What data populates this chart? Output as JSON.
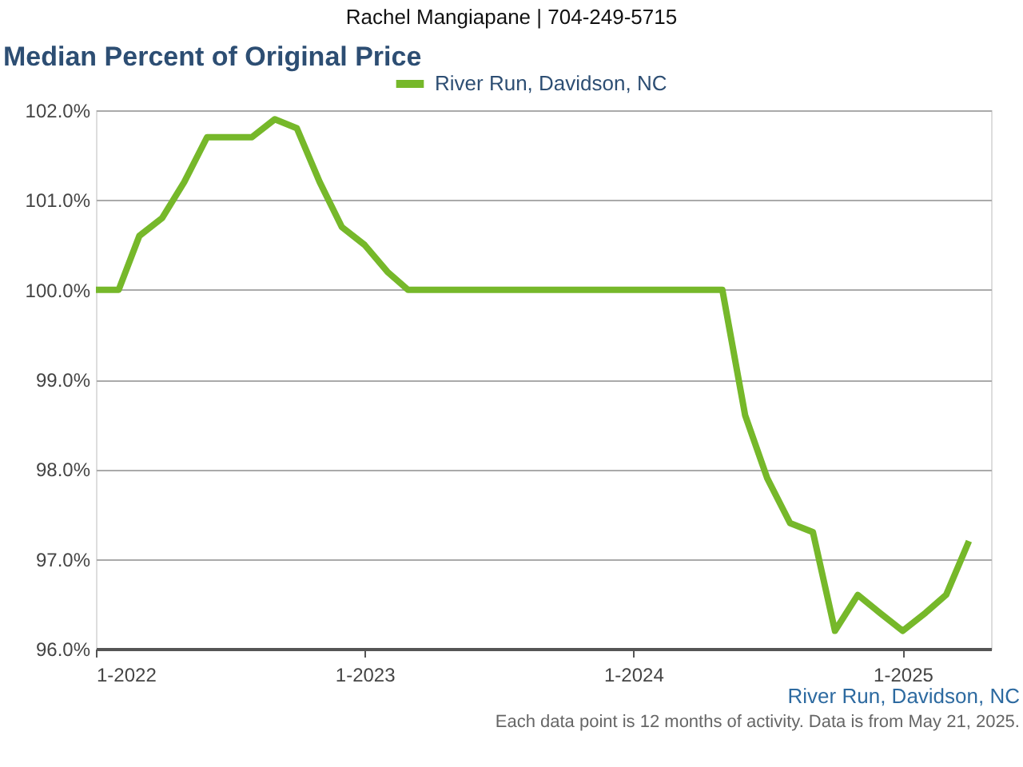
{
  "chart_data": {
    "type": "line",
    "title": "Median Percent of Original Price",
    "x": [
      "2022-01",
      "2022-02",
      "2022-03",
      "2022-04",
      "2022-05",
      "2022-06",
      "2022-07",
      "2022-08",
      "2022-09",
      "2022-10",
      "2022-11",
      "2022-12",
      "2023-01",
      "2023-02",
      "2023-03",
      "2023-04",
      "2023-05",
      "2023-06",
      "2023-07",
      "2023-08",
      "2023-09",
      "2023-10",
      "2023-11",
      "2023-12",
      "2024-01",
      "2024-02",
      "2024-03",
      "2024-04",
      "2024-05",
      "2024-06",
      "2024-07",
      "2024-08",
      "2024-09",
      "2024-10",
      "2024-11",
      "2024-12",
      "2025-01",
      "2025-02",
      "2025-03",
      "2025-04"
    ],
    "series": [
      {
        "name": "River Run, Davidson, NC",
        "color": "#76b82a",
        "values": [
          100.0,
          100.0,
          100.6,
          100.8,
          101.2,
          101.7,
          101.7,
          101.7,
          101.9,
          101.8,
          101.2,
          100.7,
          100.5,
          100.2,
          100.0,
          100.0,
          100.0,
          100.0,
          100.0,
          100.0,
          100.0,
          100.0,
          100.0,
          100.0,
          100.0,
          100.0,
          100.0,
          100.0,
          100.0,
          98.6,
          97.9,
          97.4,
          97.3,
          96.2,
          96.6,
          96.4,
          96.2,
          96.4,
          96.6,
          97.2
        ]
      }
    ],
    "xlim": [
      "2022-01",
      "2025-05"
    ],
    "xticks": [
      {
        "value": "2022-01",
        "label": "1-2022"
      },
      {
        "value": "2023-01",
        "label": "1-2023"
      },
      {
        "value": "2024-01",
        "label": "1-2024"
      },
      {
        "value": "2025-01",
        "label": "1-2025"
      }
    ],
    "ylim": [
      96,
      102
    ],
    "yticks": [
      {
        "value": 96,
        "label": "96.0%"
      },
      {
        "value": 97,
        "label": "97.0%"
      },
      {
        "value": 98,
        "label": "98.0%"
      },
      {
        "value": 99,
        "label": "99.0%"
      },
      {
        "value": 100,
        "label": "100.0%"
      },
      {
        "value": 101,
        "label": "101.0%"
      },
      {
        "value": 102,
        "label": "102.0%"
      }
    ],
    "grid": "y",
    "legend": "top",
    "marker": "none",
    "line_style": "solid",
    "annotations": [
      "Rachel Mangiapane | 704-249-5715",
      "River Run, Davidson, NC",
      "Each data point is 12 months of activity. Data is from May 21, 2025."
    ]
  }
}
